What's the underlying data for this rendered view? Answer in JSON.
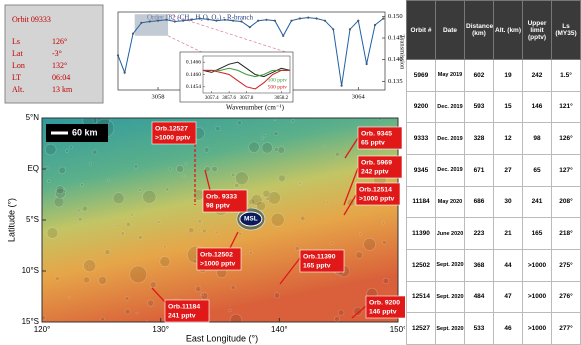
{
  "info_box": {
    "title": "Orbit 09333",
    "rows": [
      {
        "label": "Ls",
        "value": "126°"
      },
      {
        "label": "Lat",
        "value": "-3°"
      },
      {
        "label": "Lon",
        "value": "132°"
      },
      {
        "label": "LT",
        "value": "06:04"
      },
      {
        "label": "Alt.",
        "value": "13 km"
      }
    ]
  },
  "spectrum": {
    "type": "line",
    "title": "Order 182 (CH₄, H₂O, O₃) - R-branch",
    "xlabel": "Wavenumber (cm⁻¹)",
    "ylabel": "Transmission",
    "color": "#1f5fa8",
    "x": [
      3056.8,
      3057.0,
      3057.25,
      3057.5,
      3057.75,
      3058.0,
      3058.25,
      3058.5,
      3058.75,
      3059.0,
      3059.25,
      3059.5,
      3059.75,
      3060.0,
      3060.25,
      3060.5,
      3060.75,
      3061.0,
      3061.25,
      3061.5,
      3061.75,
      3062.0,
      3062.25,
      3062.5,
      3062.75,
      3063.0,
      3063.25,
      3063.5,
      3063.75,
      3064.0,
      3064.25,
      3064.5,
      3064.75
    ],
    "values": [
      0.141,
      0.137,
      0.146,
      0.1485,
      0.1488,
      0.149,
      0.1492,
      0.1488,
      0.149,
      0.1492,
      0.1495,
      0.1493,
      0.149,
      0.1492,
      0.149,
      0.1488,
      0.1475,
      0.149,
      0.1492,
      0.149,
      0.1455,
      0.149,
      0.1495,
      0.1497,
      0.1495,
      0.149,
      0.147,
      0.134,
      0.147,
      0.149,
      0.139,
      0.148,
      0.1495
    ],
    "xlim": [
      3056.8,
      3064.8
    ],
    "xticks": [
      3058,
      3061,
      3064
    ],
    "ylim": [
      0.133,
      0.151
    ],
    "yticks": [
      0.135,
      {
        "value": 0.14,
        "label": "0.140"
      },
      0.145,
      {
        "value": 0.15,
        "label": "0.150"
      }
    ]
  },
  "inset": {
    "type": "line",
    "x": [
      3057.3,
      3057.4,
      3057.5,
      3057.6,
      3057.7,
      3057.8,
      3057.9,
      3058.0,
      3058.1,
      3058.2,
      3058.3
    ],
    "series": [
      {
        "color": "#222222",
        "values": [
          0.1462,
          0.1461,
          0.1463,
          0.1465,
          0.1466,
          0.1463,
          0.146,
          0.1459,
          0.1461,
          0.1463,
          0.1462
        ]
      },
      {
        "name": "100 pptv",
        "color": "#3a9a3a",
        "values": [
          0.1462,
          0.1462,
          0.1462,
          0.1463,
          0.1462,
          0.146,
          0.1459,
          0.146,
          0.1462,
          0.1462,
          0.1462
        ]
      },
      {
        "name": "500 pptv",
        "color": "#d02020",
        "values": [
          0.1462,
          0.1462,
          0.1461,
          0.146,
          0.1457,
          0.1454,
          0.1453,
          0.1456,
          0.146,
          0.1462,
          0.1462
        ]
      }
    ],
    "xlim": [
      3057.3,
      3058.3
    ],
    "xticks": [
      3057.4,
      3057.6,
      3057.8,
      3058.2
    ],
    "ylim": [
      0.1451,
      0.1469
    ],
    "yticks": [
      0.1466,
      {
        "value": 0.146,
        "label": "0.1460"
      },
      0.1454
    ]
  },
  "map": {
    "xlabel": "East Longitude (°)",
    "ylabel": "Latitude (°)",
    "xlim": [
      120,
      150
    ],
    "ylim": [
      -15,
      5
    ],
    "xticks": [
      {
        "value": 120,
        "label": "120°"
      },
      {
        "value": 130,
        "label": "130°"
      },
      {
        "value": 140,
        "label": "140°"
      },
      {
        "value": 150,
        "label": "150°"
      }
    ],
    "yticks": [
      {
        "value": 5,
        "label": "5°N"
      },
      {
        "value": 0,
        "label": "EQ"
      },
      {
        "value": -5,
        "label": "5°S"
      },
      {
        "value": -10,
        "label": "10°S"
      },
      {
        "value": -15,
        "label": "15°S"
      }
    ],
    "scale": "60 km",
    "site": "MSL",
    "labels": [
      {
        "orbit": "Orb.12527",
        "value": ">1000 pptv"
      },
      {
        "orbit": "Orb. 9345",
        "value": "65 pptv"
      },
      {
        "orbit": "Orb. 5969",
        "value": "242 pptv"
      },
      {
        "orbit": "Orb.12514",
        "value": ">1000 pptv"
      },
      {
        "orbit": "Orb. 9333",
        "value": "98 pptv"
      },
      {
        "orbit": "Orb.12502",
        "value": ">1000 pptv"
      },
      {
        "orbit": "Orb.11390",
        "value": "165 pptv"
      },
      {
        "orbit": "Orb. 9200",
        "value": "146 pptv"
      },
      {
        "orbit": "Orb.11184",
        "value": "241 pptv"
      }
    ]
  },
  "table": {
    "header": [
      "Orbit #",
      "Date",
      "Distance (km)",
      "Alt. (km)",
      "Upper limit (pptv)",
      "Ls (MY35)"
    ],
    "rows": [
      [
        5969,
        "May 2019",
        602,
        19,
        242,
        "1.5°"
      ],
      [
        9200,
        "Dec. 2019",
        593,
        15,
        146,
        "121°"
      ],
      [
        9333,
        "Dec. 2019",
        328,
        12,
        98,
        "126°"
      ],
      [
        9345,
        "Dec. 2019",
        671,
        27,
        65,
        "127°"
      ],
      [
        11184,
        "May 2020",
        686,
        30,
        241,
        "208°"
      ],
      [
        11390,
        "June 2020",
        223,
        21,
        165,
        "218°"
      ],
      [
        12502,
        "Sept. 2020",
        368,
        44,
        ">1000",
        "275°"
      ],
      [
        12514,
        "Sept. 2020",
        484,
        47,
        ">1000",
        "276°"
      ],
      [
        12527,
        "Sept. 2020",
        533,
        46,
        ">1000",
        "277°"
      ]
    ]
  }
}
